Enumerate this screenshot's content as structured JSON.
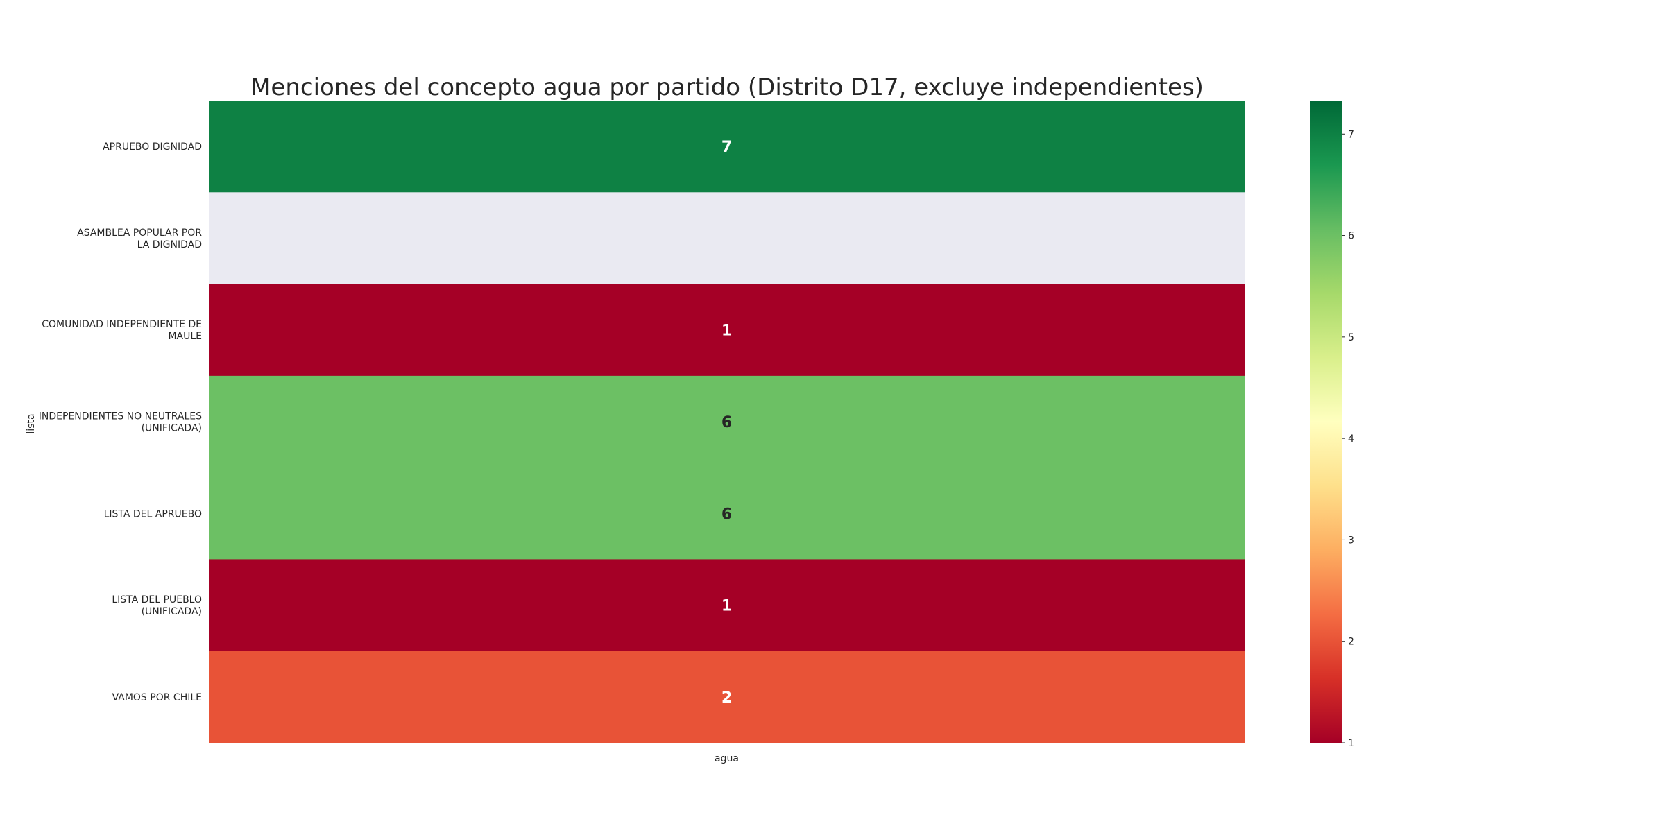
{
  "chart_data": {
    "type": "heatmap",
    "title": "Menciones del concepto agua por partido (Distrito D17, excluye independientes)",
    "xlabel": "",
    "ylabel": "lista",
    "x_categories": [
      "agua"
    ],
    "y_categories": [
      [
        "APRUEBO DIGNIDAD"
      ],
      [
        "ASAMBLEA POPULAR POR",
        "LA DIGNIDAD"
      ],
      [
        "COMUNIDAD INDEPENDIENTE DE",
        "MAULE"
      ],
      [
        "INDEPENDIENTES NO NEUTRALES",
        "(UNIFICADA)"
      ],
      [
        "LISTA DEL APRUEBO"
      ],
      [
        "LISTA DEL PUEBLO",
        "(UNIFICADA)"
      ],
      [
        "VAMOS POR CHILE"
      ]
    ],
    "values": [
      [
        7
      ],
      [
        null
      ],
      [
        1
      ],
      [
        6
      ],
      [
        6
      ],
      [
        1
      ],
      [
        2
      ]
    ],
    "missing_color": "#eaeaf2",
    "colormap": "RdYlGn",
    "colorbar": {
      "min": 1,
      "max": 7.33,
      "ticks": [
        1,
        2,
        3,
        4,
        5,
        6,
        7
      ],
      "colors": [
        "#a50026",
        "#d73027",
        "#f46d43",
        "#fdae61",
        "#fee08b",
        "#ffffbf",
        "#d9ef8b",
        "#a6d96a",
        "#66bd63",
        "#1a9850",
        "#006837"
      ]
    },
    "annotations": true
  }
}
